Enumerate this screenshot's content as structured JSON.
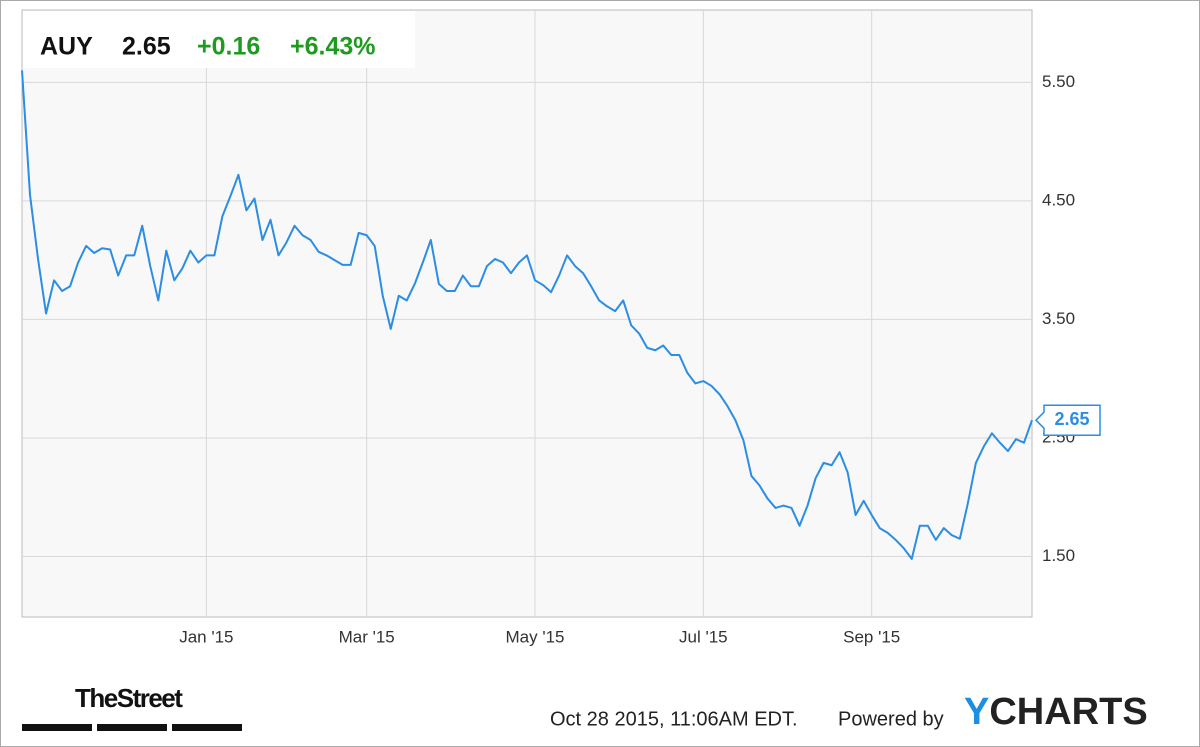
{
  "header": {
    "ticker": "AUY",
    "price": "2.65",
    "change": "+0.16",
    "change_pct": "+6.43%"
  },
  "footer": {
    "source_logo": "TheStreet",
    "timestamp": "Oct 28 2015, 11:06AM EDT.",
    "powered_by": "Powered by",
    "brand": [
      "Y",
      "CHARTS"
    ]
  },
  "chart_data": {
    "type": "line",
    "categories": [
      null,
      null,
      null,
      null,
      null,
      null,
      null,
      null,
      null,
      null,
      null,
      null,
      null,
      null,
      null,
      null,
      null,
      null,
      null,
      null,
      null,
      null,
      null,
      "Jan '15",
      null,
      null,
      null,
      null,
      null,
      null,
      null,
      null,
      null,
      null,
      null,
      null,
      null,
      null,
      null,
      null,
      null,
      null,
      null,
      "Mar '15",
      null,
      null,
      null,
      null,
      null,
      null,
      null,
      null,
      null,
      null,
      null,
      null,
      null,
      null,
      null,
      null,
      null,
      null,
      null,
      null,
      "May '15",
      null,
      null,
      null,
      null,
      null,
      null,
      null,
      null,
      null,
      null,
      null,
      null,
      null,
      null,
      null,
      null,
      null,
      null,
      null,
      null,
      "Jul '15",
      null,
      null,
      null,
      null,
      null,
      null,
      null,
      null,
      null,
      null,
      null,
      null,
      null,
      null,
      null,
      null,
      null,
      null,
      null,
      null,
      "Sep '15",
      null,
      null,
      null,
      null,
      null,
      null,
      null,
      null,
      null,
      null,
      null,
      null,
      null,
      null,
      null,
      null,
      null,
      null,
      null,
      null
    ],
    "series": [
      {
        "name": "AUY",
        "color": "#2b8de3",
        "values": [
          5.6,
          4.55,
          4.01,
          3.55,
          3.83,
          3.74,
          3.78,
          3.98,
          4.12,
          4.06,
          4.1,
          4.09,
          3.87,
          4.04,
          4.04,
          4.29,
          3.95,
          3.66,
          4.08,
          3.83,
          3.93,
          4.08,
          3.98,
          4.04,
          4.04,
          4.37,
          4.54,
          4.72,
          4.42,
          4.52,
          4.17,
          4.34,
          4.04,
          4.15,
          4.29,
          4.21,
          4.17,
          4.07,
          4.04,
          4.0,
          3.96,
          3.96,
          4.23,
          4.21,
          4.12,
          3.7,
          3.42,
          3.7,
          3.66,
          3.8,
          3.98,
          4.17,
          3.8,
          3.74,
          3.74,
          3.87,
          3.78,
          3.78,
          3.95,
          4.01,
          3.98,
          3.89,
          3.98,
          4.04,
          3.83,
          3.79,
          3.73,
          3.87,
          4.04,
          3.95,
          3.89,
          3.78,
          3.66,
          3.61,
          3.57,
          3.66,
          3.45,
          3.38,
          3.26,
          3.24,
          3.28,
          3.2,
          3.2,
          3.05,
          2.96,
          2.98,
          2.94,
          2.87,
          2.77,
          2.65,
          2.48,
          2.18,
          2.1,
          1.99,
          1.91,
          1.93,
          1.91,
          1.76,
          1.93,
          2.16,
          2.29,
          2.27,
          2.38,
          2.21,
          1.85,
          1.97,
          1.85,
          1.74,
          1.7,
          1.64,
          1.57,
          1.48,
          1.76,
          1.76,
          1.64,
          1.74,
          1.68,
          1.65,
          1.95,
          2.29,
          2.43,
          2.54,
          2.46,
          2.39,
          2.49,
          2.46,
          2.65
        ]
      }
    ],
    "ylim": [
      0.99,
      6.11
    ],
    "yticks": [
      {
        "value": 1.5,
        "label": "1.50"
      },
      {
        "value": 2.5,
        "label": "2.50"
      },
      {
        "value": 3.5,
        "label": "3.50"
      },
      {
        "value": 4.5,
        "label": "4.50"
      },
      {
        "value": 5.5,
        "label": "5.50"
      }
    ],
    "grid": true
  }
}
